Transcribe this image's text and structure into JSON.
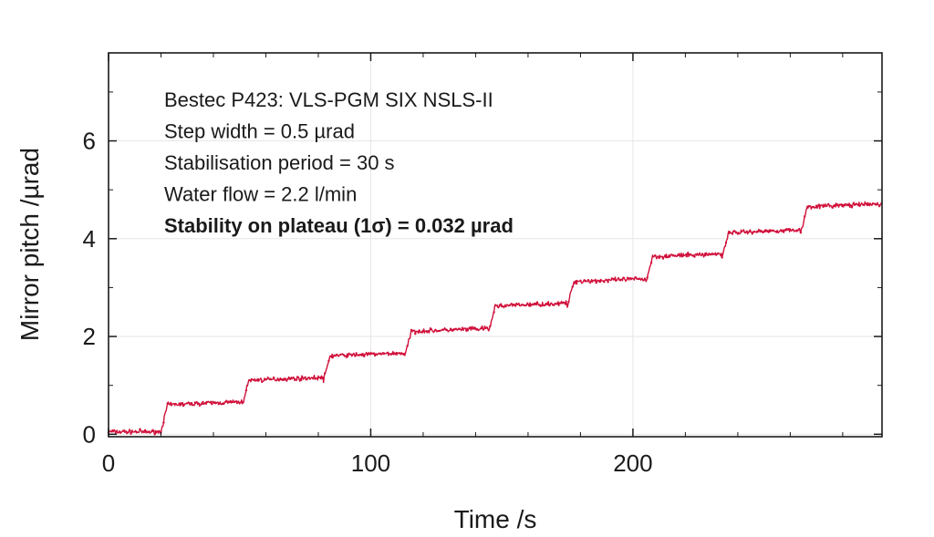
{
  "chart_data": {
    "type": "scatter",
    "xlabel": "Time /s",
    "ylabel": "Mirror pitch /µrad",
    "xlim": [
      0,
      295
    ],
    "ylim": [
      -0.05,
      7.8
    ],
    "x_ticks": [
      0,
      100,
      200
    ],
    "y_ticks": [
      0,
      2,
      4,
      6
    ],
    "x_tick_labels": [
      "0",
      "100",
      "200"
    ],
    "y_tick_labels": [
      "0",
      "2",
      "4",
      "6"
    ],
    "grid": true,
    "annotations": [
      "Bestec P423: VLS-PGM SIX NSLS-II",
      "Step width = 0.5 µrad",
      "Stabilisation period = 30 s",
      "Water flow = 2.2 l/min",
      "Stability on plateau (1σ) = 0.032 µrad"
    ],
    "series": [
      {
        "color": "#d0103a",
        "step_times": [
          0,
          20,
          51,
          82,
          113,
          145,
          175,
          205,
          234,
          264
        ],
        "plateau_values": [
          0.05,
          0.6,
          1.1,
          1.6,
          2.1,
          2.62,
          3.12,
          3.63,
          4.12,
          4.65
        ],
        "end_time": 295
      }
    ]
  },
  "colors": {
    "series": "#d0103a",
    "axis": "#1a1a1a",
    "grid": "#e6e6e6"
  }
}
